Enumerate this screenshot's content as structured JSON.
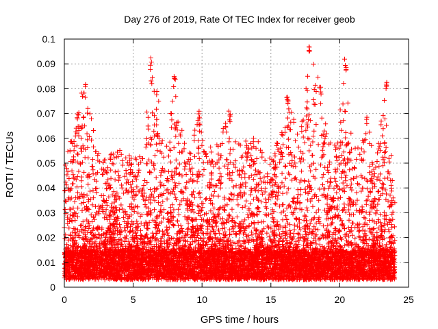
{
  "chart_data": {
    "type": "scatter",
    "title": "Day 276 of 2019, Rate Of TEC Index for receiver geob",
    "xlabel": "GPS time / hours",
    "ylabel": "ROTI / TECUs",
    "xlim": [
      0,
      25
    ],
    "ylim": [
      0,
      0.1
    ],
    "xticks": [
      "0",
      "5",
      "10",
      "15",
      "20",
      "25"
    ],
    "yticks": [
      "0",
      "0.01",
      "0.02",
      "0.03",
      "0.04",
      "0.05",
      "0.06",
      "0.07",
      "0.08",
      "0.09",
      "0.1"
    ],
    "grid": true,
    "marker": "plus",
    "series": [
      {
        "name": "ROTI",
        "color": "#ff0000",
        "x_range": [
          0,
          24
        ],
        "baseline_range": [
          0.003,
          0.014
        ],
        "noted_peaks": [
          {
            "x": 1.5,
            "y": 0.084
          },
          {
            "x": 6.3,
            "y": 0.093
          },
          {
            "x": 8.0,
            "y": 0.088
          },
          {
            "x": 9.8,
            "y": 0.071
          },
          {
            "x": 12.0,
            "y": 0.072
          },
          {
            "x": 16.2,
            "y": 0.078
          },
          {
            "x": 17.8,
            "y": 0.1
          },
          {
            "x": 18.6,
            "y": 0.082
          },
          {
            "x": 20.4,
            "y": 0.092
          },
          {
            "x": 23.4,
            "y": 0.084
          }
        ],
        "activity_envelope": [
          {
            "x": 0.3,
            "y": 0.062
          },
          {
            "x": 0.6,
            "y": 0.058
          },
          {
            "x": 1.0,
            "y": 0.073
          },
          {
            "x": 1.5,
            "y": 0.084
          },
          {
            "x": 2.3,
            "y": 0.058
          },
          {
            "x": 3.0,
            "y": 0.052
          },
          {
            "x": 3.7,
            "y": 0.056
          },
          {
            "x": 4.5,
            "y": 0.054
          },
          {
            "x": 5.2,
            "y": 0.052
          },
          {
            "x": 5.8,
            "y": 0.057
          },
          {
            "x": 6.3,
            "y": 0.093
          },
          {
            "x": 6.8,
            "y": 0.08
          },
          {
            "x": 7.3,
            "y": 0.05
          },
          {
            "x": 8.0,
            "y": 0.088
          },
          {
            "x": 8.4,
            "y": 0.068
          },
          {
            "x": 9.0,
            "y": 0.055
          },
          {
            "x": 9.8,
            "y": 0.071
          },
          {
            "x": 10.5,
            "y": 0.058
          },
          {
            "x": 11.2,
            "y": 0.058
          },
          {
            "x": 12.0,
            "y": 0.072
          },
          {
            "x": 12.6,
            "y": 0.06
          },
          {
            "x": 13.4,
            "y": 0.062
          },
          {
            "x": 14.4,
            "y": 0.058
          },
          {
            "x": 15.2,
            "y": 0.052
          },
          {
            "x": 16.2,
            "y": 0.078
          },
          {
            "x": 16.8,
            "y": 0.066
          },
          {
            "x": 17.4,
            "y": 0.068
          },
          {
            "x": 17.8,
            "y": 0.1
          },
          {
            "x": 18.6,
            "y": 0.082
          },
          {
            "x": 19.3,
            "y": 0.058
          },
          {
            "x": 19.8,
            "y": 0.06
          },
          {
            "x": 20.4,
            "y": 0.092
          },
          {
            "x": 20.9,
            "y": 0.058
          },
          {
            "x": 21.4,
            "y": 0.06
          },
          {
            "x": 22.0,
            "y": 0.074
          },
          {
            "x": 22.6,
            "y": 0.05
          },
          {
            "x": 23.4,
            "y": 0.084
          },
          {
            "x": 23.9,
            "y": 0.04
          }
        ]
      }
    ]
  }
}
